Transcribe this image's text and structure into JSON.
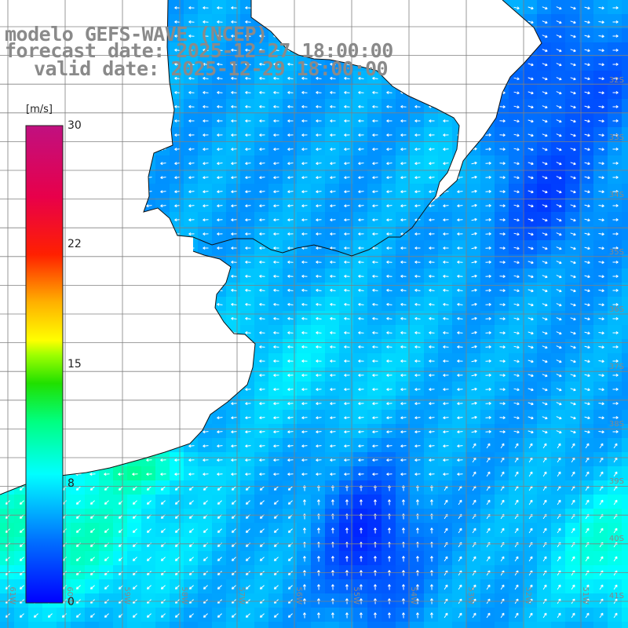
{
  "title": {
    "line1": "modelo GEFS-WAVE (NCEP)",
    "line2": "forecast date: 2025-12-27 18:00:00",
    "line3": "valid date: 2025-12-29 18:00:00"
  },
  "colorbar": {
    "unit": "[m/s]",
    "min": 0,
    "max": 30,
    "ticks": [
      {
        "value": 30,
        "label": "30"
      },
      {
        "value": 22,
        "label": "22"
      },
      {
        "value": 15,
        "label": "15"
      },
      {
        "value": 8,
        "label": "8"
      },
      {
        "value": 0,
        "label": "0"
      }
    ],
    "colors": [
      "#0000ff",
      "#0070ff",
      "#00d8ff",
      "#00ff90",
      "#20ff00",
      "#a0ff00",
      "#ffff00",
      "#ffa000",
      "#ff3000",
      "#ff0000",
      "#e00060",
      "#c01080"
    ]
  },
  "map": {
    "lat_labels": [
      "32S",
      "33S",
      "34S",
      "35S",
      "36S",
      "37S",
      "38S",
      "39S",
      "40S",
      "41S"
    ],
    "lon_labels": [
      "61W",
      "60W",
      "59W",
      "58W",
      "57W",
      "56W",
      "55W",
      "54W",
      "53W",
      "52W",
      "51W"
    ],
    "land_color": "#ffffff",
    "grid_color": "#808080",
    "arrow_color": "#ffffff"
  }
}
